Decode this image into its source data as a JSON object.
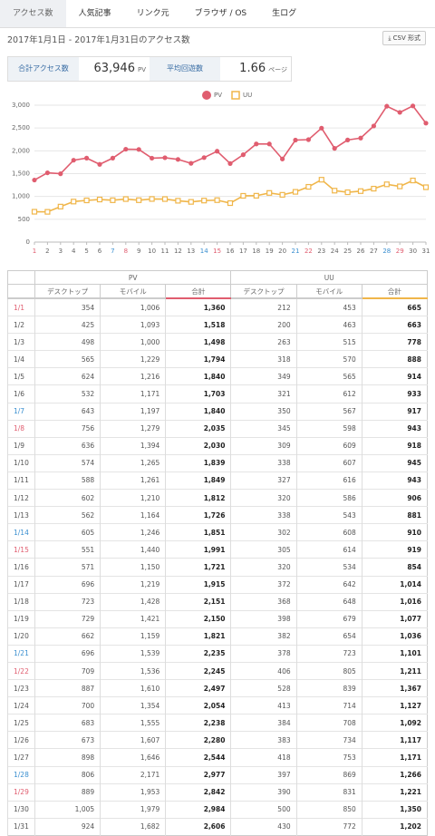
{
  "tabs": [
    "アクセス数",
    "人気記事",
    "リンク元",
    "ブラウザ / OS",
    "生ログ"
  ],
  "range_text": "2017年1月1日 - 2017年1月31日のアクセス数",
  "csv_button": "CSV 形式",
  "summary": [
    {
      "label": "合計アクセス数",
      "value": "63,946",
      "unit": "PV"
    },
    {
      "label": "平均回遊数",
      "value": "1.66",
      "unit": "ページ"
    }
  ],
  "chart_data": {
    "type": "line",
    "categories": [
      "1",
      "2",
      "3",
      "4",
      "5",
      "6",
      "7",
      "8",
      "9",
      "10",
      "11",
      "12",
      "13",
      "14",
      "15",
      "16",
      "17",
      "18",
      "19",
      "20",
      "21",
      "22",
      "23",
      "24",
      "25",
      "26",
      "27",
      "28",
      "29",
      "30",
      "31"
    ],
    "category_colors": [
      "#e05d6f",
      "#666",
      "#666",
      "#666",
      "#666",
      "#666",
      "#3a8fd0",
      "#e05d6f",
      "#666",
      "#666",
      "#666",
      "#666",
      "#666",
      "#3a8fd0",
      "#e05d6f",
      "#666",
      "#666",
      "#666",
      "#666",
      "#666",
      "#3a8fd0",
      "#e05d6f",
      "#666",
      "#666",
      "#666",
      "#666",
      "#666",
      "#3a8fd0",
      "#e05d6f",
      "#666",
      "#666"
    ],
    "series": [
      {
        "name": "PV",
        "color": "#e05d6f",
        "marker": "circle",
        "values": [
          1360,
          1518,
          1498,
          1794,
          1840,
          1703,
          1840,
          2035,
          2030,
          1839,
          1849,
          1812,
          1726,
          1851,
          1991,
          1721,
          1915,
          2151,
          2150,
          1821,
          2235,
          2245,
          2497,
          2054,
          2238,
          2280,
          2544,
          2977,
          2842,
          2984,
          2606
        ]
      },
      {
        "name": "UU",
        "color": "#f0b64a",
        "marker": "square",
        "values": [
          665,
          663,
          778,
          888,
          914,
          933,
          917,
          943,
          918,
          945,
          943,
          906,
          881,
          910,
          919,
          854,
          1014,
          1016,
          1077,
          1036,
          1101,
          1211,
          1367,
          1127,
          1092,
          1117,
          1171,
          1266,
          1221,
          1350,
          1202
        ]
      }
    ],
    "ylim": [
      0,
      3000
    ],
    "yticks": [
      0,
      500,
      {
        "value": 1000,
        "label": "1,000"
      },
      {
        "value": 1500,
        "label": "1,500"
      },
      {
        "value": 2000,
        "label": "2,000"
      },
      {
        "value": 2500,
        "label": "2,500"
      },
      {
        "value": 3000,
        "label": "3,000"
      }
    ],
    "grid": true,
    "legend": "top"
  },
  "table": {
    "groups": [
      "PV",
      "UU"
    ],
    "columns": [
      "デスクトップ",
      "モバイル",
      "合計",
      "デスクトップ",
      "モバイル",
      "合計"
    ],
    "date_colors": [
      "#e05d6f",
      "#555",
      "#555",
      "#555",
      "#555",
      "#555",
      "#3a8fd0",
      "#e05d6f",
      "#555",
      "#555",
      "#555",
      "#555",
      "#555",
      "#3a8fd0",
      "#e05d6f",
      "#555",
      "#555",
      "#555",
      "#555",
      "#555",
      "#3a8fd0",
      "#e05d6f",
      "#555",
      "#555",
      "#555",
      "#555",
      "#555",
      "#3a8fd0",
      "#e05d6f",
      "#555",
      "#555"
    ],
    "rows": [
      [
        "1/1",
        "354",
        "1,006",
        "1,360",
        "212",
        "453",
        "665"
      ],
      [
        "1/2",
        "425",
        "1,093",
        "1,518",
        "200",
        "463",
        "663"
      ],
      [
        "1/3",
        "498",
        "1,000",
        "1,498",
        "263",
        "515",
        "778"
      ],
      [
        "1/4",
        "565",
        "1,229",
        "1,794",
        "318",
        "570",
        "888"
      ],
      [
        "1/5",
        "624",
        "1,216",
        "1,840",
        "349",
        "565",
        "914"
      ],
      [
        "1/6",
        "532",
        "1,171",
        "1,703",
        "321",
        "612",
        "933"
      ],
      [
        "1/7",
        "643",
        "1,197",
        "1,840",
        "350",
        "567",
        "917"
      ],
      [
        "1/8",
        "756",
        "1,279",
        "2,035",
        "345",
        "598",
        "943"
      ],
      [
        "1/9",
        "636",
        "1,394",
        "2,030",
        "309",
        "609",
        "918"
      ],
      [
        "1/10",
        "574",
        "1,265",
        "1,839",
        "338",
        "607",
        "945"
      ],
      [
        "1/11",
        "588",
        "1,261",
        "1,849",
        "327",
        "616",
        "943"
      ],
      [
        "1/12",
        "602",
        "1,210",
        "1,812",
        "320",
        "586",
        "906"
      ],
      [
        "1/13",
        "562",
        "1,164",
        "1,726",
        "338",
        "543",
        "881"
      ],
      [
        "1/14",
        "605",
        "1,246",
        "1,851",
        "302",
        "608",
        "910"
      ],
      [
        "1/15",
        "551",
        "1,440",
        "1,991",
        "305",
        "614",
        "919"
      ],
      [
        "1/16",
        "571",
        "1,150",
        "1,721",
        "320",
        "534",
        "854"
      ],
      [
        "1/17",
        "696",
        "1,219",
        "1,915",
        "372",
        "642",
        "1,014"
      ],
      [
        "1/18",
        "723",
        "1,428",
        "2,151",
        "368",
        "648",
        "1,016"
      ],
      [
        "1/19",
        "729",
        "1,421",
        "2,150",
        "398",
        "679",
        "1,077"
      ],
      [
        "1/20",
        "662",
        "1,159",
        "1,821",
        "382",
        "654",
        "1,036"
      ],
      [
        "1/21",
        "696",
        "1,539",
        "2,235",
        "378",
        "723",
        "1,101"
      ],
      [
        "1/22",
        "709",
        "1,536",
        "2,245",
        "406",
        "805",
        "1,211"
      ],
      [
        "1/23",
        "887",
        "1,610",
        "2,497",
        "528",
        "839",
        "1,367"
      ],
      [
        "1/24",
        "700",
        "1,354",
        "2,054",
        "413",
        "714",
        "1,127"
      ],
      [
        "1/25",
        "683",
        "1,555",
        "2,238",
        "384",
        "708",
        "1,092"
      ],
      [
        "1/26",
        "673",
        "1,607",
        "2,280",
        "383",
        "734",
        "1,117"
      ],
      [
        "1/27",
        "898",
        "1,646",
        "2,544",
        "418",
        "753",
        "1,171"
      ],
      [
        "1/28",
        "806",
        "2,171",
        "2,977",
        "397",
        "869",
        "1,266"
      ],
      [
        "1/29",
        "889",
        "1,953",
        "2,842",
        "390",
        "831",
        "1,221"
      ],
      [
        "1/30",
        "1,005",
        "1,979",
        "2,984",
        "500",
        "850",
        "1,350"
      ],
      [
        "1/31",
        "924",
        "1,682",
        "2,606",
        "430",
        "772",
        "1,202"
      ]
    ]
  }
}
